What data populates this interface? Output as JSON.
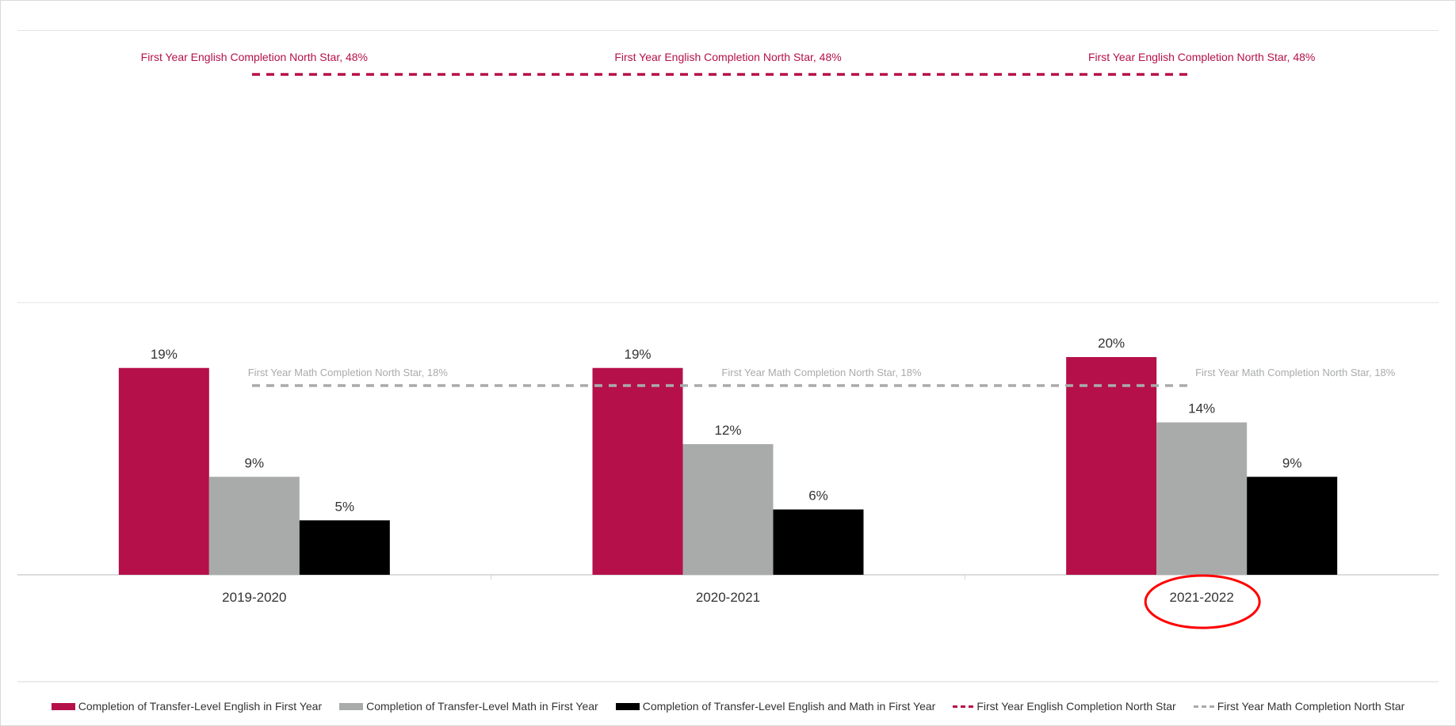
{
  "chart_data": {
    "type": "bar",
    "categories": [
      "2019-2020",
      "2020-2021",
      "2021-2022"
    ],
    "series": [
      {
        "name": "Completion of Transfer-Level English in First Year",
        "values": [
          19,
          19,
          20
        ],
        "labels": [
          "19%",
          "19%",
          "20%"
        ],
        "color": "#b5104a"
      },
      {
        "name": "Completion of Transfer-Level Math in First Year",
        "values": [
          9,
          12,
          14
        ],
        "labels": [
          "9%",
          "12%",
          "14%"
        ],
        "color": "#a9abaa"
      },
      {
        "name": "Completion of Transfer-Level English and Math in First Year",
        "values": [
          5,
          6,
          9
        ],
        "labels": [
          "5%",
          "6%",
          "9%"
        ],
        "color": "#000000"
      }
    ],
    "reference_lines": [
      {
        "name": "First Year English Completion North Star",
        "value": 48,
        "label": "First Year English Completion North Star, 48%",
        "color": "#b5104a"
      },
      {
        "name": "First Year Math Completion North Star",
        "value": 18,
        "label": "First Year Math Completion North Star, 18%",
        "color": "#a9abaa"
      }
    ],
    "ylim": [
      0,
      50
    ],
    "grid": true,
    "legend_position": "bottom",
    "highlight": {
      "category": "2021-2022",
      "color": "#ff0000"
    }
  }
}
